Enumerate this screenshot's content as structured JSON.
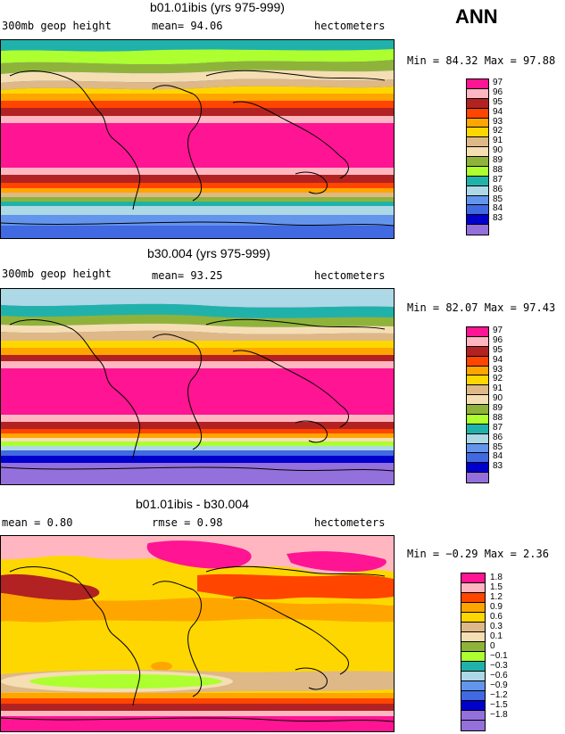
{
  "season": "ANN",
  "colors": {
    "c97": "#ff1493",
    "c96": "#ffb6c1",
    "c95": "#b22222",
    "c94": "#ff4500",
    "c93": "#ffa500",
    "c92": "#ffd700",
    "c91": "#deb887",
    "c90": "#f5deb3",
    "c89": "#8fb33a",
    "c88": "#adff2f",
    "c87": "#20b2aa",
    "c86": "#add8e6",
    "c85": "#6495ed",
    "c84": "#4169e1",
    "c83": "#0000cd",
    "c82": "#9370db"
  },
  "panels": [
    {
      "title": "b01.01ibis (yrs 975-999)",
      "left_label": "300mb geop height",
      "center_label": "mean=   94.06",
      "right_label": "hectometers",
      "minmax": "Min =   84.32  Max =   97.88",
      "legend": [
        {
          "label": "97",
          "color": "#ff1493"
        },
        {
          "label": "96",
          "color": "#ffb6c1"
        },
        {
          "label": "95",
          "color": "#b22222"
        },
        {
          "label": "94",
          "color": "#ff4500"
        },
        {
          "label": "93",
          "color": "#ffa500"
        },
        {
          "label": "92",
          "color": "#ffd700"
        },
        {
          "label": "91",
          "color": "#deb887"
        },
        {
          "label": "90",
          "color": "#f5deb3"
        },
        {
          "label": "89",
          "color": "#8fb33a"
        },
        {
          "label": "88",
          "color": "#adff2f"
        },
        {
          "label": "87",
          "color": "#20b2aa"
        },
        {
          "label": "86",
          "color": "#add8e6"
        },
        {
          "label": "85",
          "color": "#6495ed"
        },
        {
          "label": "84",
          "color": "#4169e1"
        },
        {
          "label": "83",
          "color": "#0000cd"
        },
        {
          "label": "",
          "color": "#9370db"
        }
      ]
    },
    {
      "title": "b30.004 (yrs 975-999)",
      "left_label": "300mb geop height",
      "center_label": "mean=   93.25",
      "right_label": "hectometers",
      "minmax": "Min =   82.07  Max =   97.43",
      "legend": [
        {
          "label": "97",
          "color": "#ff1493"
        },
        {
          "label": "96",
          "color": "#ffb6c1"
        },
        {
          "label": "95",
          "color": "#b22222"
        },
        {
          "label": "94",
          "color": "#ff4500"
        },
        {
          "label": "93",
          "color": "#ffa500"
        },
        {
          "label": "92",
          "color": "#ffd700"
        },
        {
          "label": "91",
          "color": "#deb887"
        },
        {
          "label": "90",
          "color": "#f5deb3"
        },
        {
          "label": "89",
          "color": "#8fb33a"
        },
        {
          "label": "88",
          "color": "#adff2f"
        },
        {
          "label": "87",
          "color": "#20b2aa"
        },
        {
          "label": "86",
          "color": "#add8e6"
        },
        {
          "label": "85",
          "color": "#6495ed"
        },
        {
          "label": "84",
          "color": "#4169e1"
        },
        {
          "label": "83",
          "color": "#0000cd"
        },
        {
          "label": "",
          "color": "#9370db"
        }
      ]
    },
    {
      "title": "b01.01ibis - b30.004",
      "left_label": "mean =     0.80",
      "center_label": "rmse =     0.98",
      "right_label": "hectometers",
      "minmax": "Min =  −0.29  Max =    2.36",
      "legend": [
        {
          "label": "1.8",
          "color": "#ff1493"
        },
        {
          "label": "1.5",
          "color": "#ffb6c1"
        },
        {
          "label": "1.2",
          "color": "#ff4500"
        },
        {
          "label": "0.9",
          "color": "#ffa500"
        },
        {
          "label": "0.6",
          "color": "#ffd700"
        },
        {
          "label": "0.3",
          "color": "#deb887"
        },
        {
          "label": "0.1",
          "color": "#f5deb3"
        },
        {
          "label": "0",
          "color": "#8fb33a"
        },
        {
          "label": "−0.1",
          "color": "#adff2f"
        },
        {
          "label": "−0.3",
          "color": "#20b2aa"
        },
        {
          "label": "−0.6",
          "color": "#add8e6"
        },
        {
          "label": "−0.9",
          "color": "#6495ed"
        },
        {
          "label": "−1.2",
          "color": "#4169e1"
        },
        {
          "label": "−1.5",
          "color": "#0000cd"
        },
        {
          "label": "−1.8",
          "color": "#9370db"
        },
        {
          "label": "",
          "color": "#9370db"
        }
      ]
    }
  ]
}
